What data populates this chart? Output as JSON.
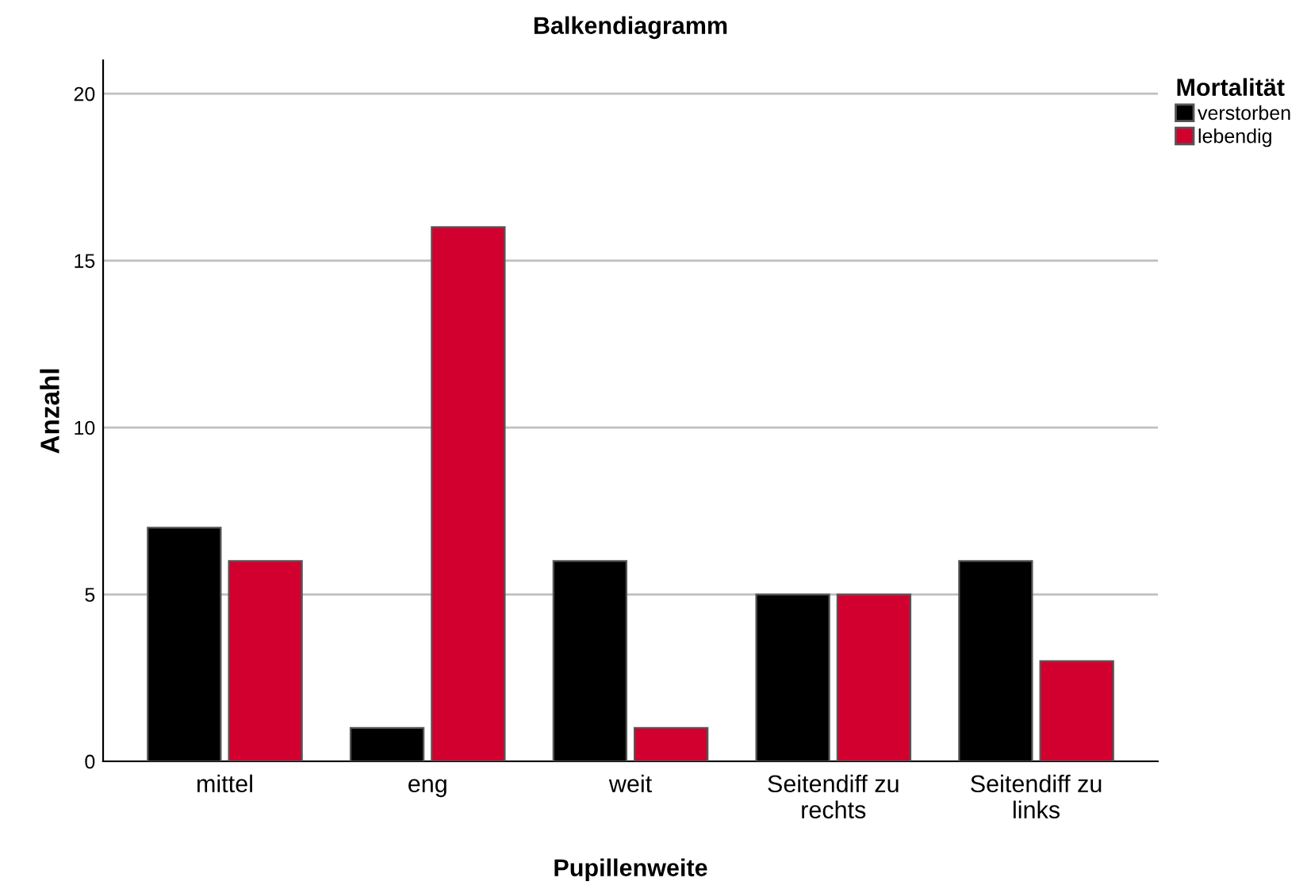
{
  "chart_data": {
    "type": "bar",
    "title": "Balkendiagramm",
    "xlabel": "Pupillenweite",
    "ylabel": "Anzahl",
    "legend_title": "Mortalität",
    "categories": [
      "mittel",
      "eng",
      "weit",
      "Seitendiff zu\nrechts",
      "Seitendiff zu\nlinks"
    ],
    "series": [
      {
        "name": "verstorben",
        "color": "#000000",
        "values": [
          7,
          1,
          6,
          5,
          6
        ]
      },
      {
        "name": "lebendig",
        "color": "#d2002f",
        "values": [
          6,
          16,
          1,
          5,
          3
        ]
      }
    ],
    "ylim": [
      0,
      21
    ],
    "yticks": [
      0,
      5,
      10,
      15,
      20
    ],
    "grid": "y",
    "legend": "top right"
  }
}
